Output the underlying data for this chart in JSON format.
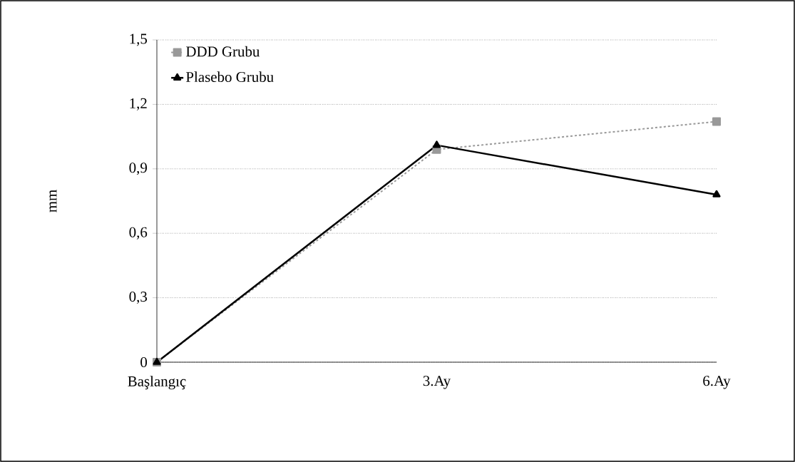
{
  "chart_data": {
    "type": "line",
    "ylabel": "mm",
    "categories": [
      "Başlangıç",
      "3.Ay",
      "6.Ay"
    ],
    "series": [
      {
        "name": "DDD Grubu",
        "color": "#999999",
        "values": [
          0,
          0.99,
          1.12
        ],
        "marker": "square",
        "line_style": "dashed"
      },
      {
        "name": "Plasebo Grubu",
        "color": "#000000",
        "values": [
          0,
          1.01,
          0.78
        ],
        "marker": "triangle",
        "line_style": "solid"
      }
    ],
    "ylim": [
      0,
      1.5
    ],
    "yticks": [
      0,
      {
        "value": 0.3,
        "label": "0,3"
      },
      {
        "value": 0.6,
        "label": "0,6"
      },
      {
        "value": 0.9,
        "label": "0,9"
      },
      {
        "value": 1.2,
        "label": "1,2"
      },
      {
        "value": 1.5,
        "label": "1,5"
      }
    ],
    "grid": "y",
    "legend": "top left"
  }
}
